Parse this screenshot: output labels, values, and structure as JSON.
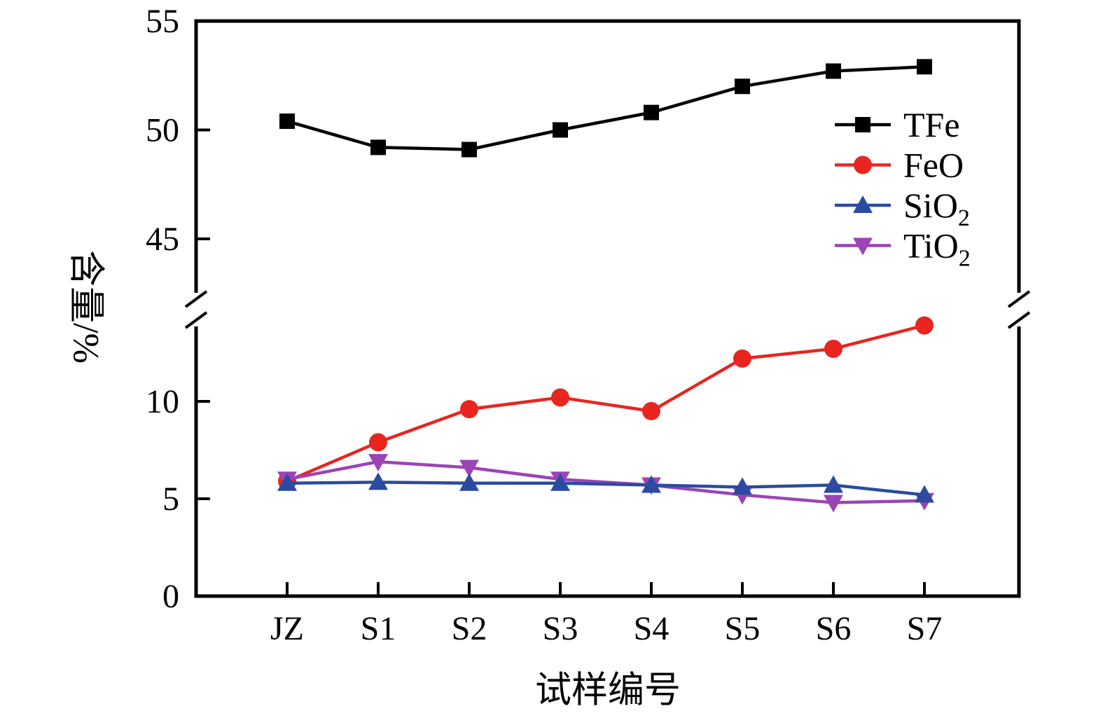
{
  "chart_data": {
    "type": "line",
    "title": "",
    "xlabel": "试样编号",
    "ylabel": "含量/%",
    "categories": [
      "JZ",
      "S1",
      "S2",
      "S3",
      "S4",
      "S5",
      "S6",
      "S7"
    ],
    "series": [
      {
        "name": "TFe",
        "sub": "",
        "marker": "square",
        "color": "#000000",
        "values": [
          50.4,
          49.2,
          49.1,
          50.0,
          50.8,
          52.0,
          52.7,
          52.9
        ]
      },
      {
        "name": "FeO",
        "sub": "",
        "marker": "circle",
        "color": "#e8251f",
        "values": [
          5.9,
          7.9,
          9.6,
          10.2,
          9.5,
          12.2,
          12.7,
          13.9
        ]
      },
      {
        "name": "SiO",
        "sub": "2",
        "marker": "triangle-up",
        "color": "#2b4ba0",
        "values": [
          5.8,
          5.85,
          5.8,
          5.8,
          5.7,
          5.6,
          5.7,
          5.2
        ]
      },
      {
        "name": "TiO",
        "sub": "2",
        "marker": "triangle-down",
        "color": "#9b44b6",
        "values": [
          6.0,
          6.9,
          6.6,
          6.0,
          5.7,
          5.2,
          4.8,
          4.9
        ]
      }
    ],
    "axis": {
      "broken_axis": true,
      "lower_ticks": [
        0,
        5,
        10
      ],
      "upper_ticks": [
        45,
        50,
        55
      ],
      "lower_range": [
        0,
        14.8
      ],
      "upper_range": [
        41.4,
        55
      ]
    },
    "legend_position": "upper right",
    "grid": false
  }
}
